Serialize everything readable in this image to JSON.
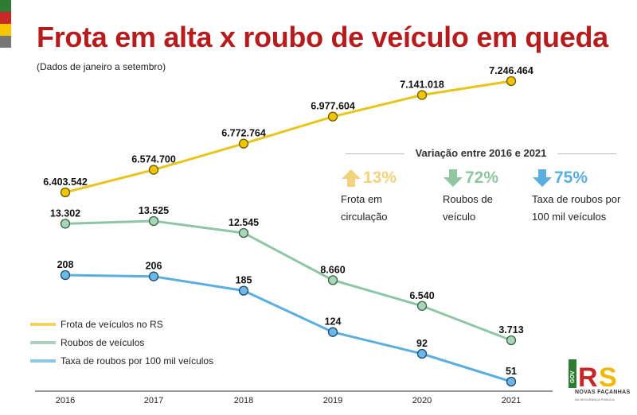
{
  "header": {
    "title": "Frota em alta x roubo de veículo em queda",
    "subtitle": "(Dados de janeiro a setembro)"
  },
  "variation": {
    "title": "Variação entre 2016 e 2021",
    "items": [
      {
        "pct": "13%",
        "desc1": "Frota em",
        "desc2": "circulação",
        "direction": "up",
        "color": "#f2d27c",
        "icon": "arrow-up-icon"
      },
      {
        "pct": "72%",
        "desc1": "Roubos de",
        "desc2": "veículo",
        "direction": "down",
        "color": "#8fc6a0",
        "icon": "arrow-down-icon"
      },
      {
        "pct": "75%",
        "desc1": "Taxa de roubos por",
        "desc2": "100 mil veículos",
        "direction": "down",
        "color": "#5aaee0",
        "icon": "arrow-down-icon"
      }
    ]
  },
  "legend": [
    {
      "label": "Frota de veículos no RS",
      "color": "#f3d45a"
    },
    {
      "label": "Roubos de veículos",
      "color": "#a7d3b8"
    },
    {
      "label": "Taxa de roubos por 100 mil veículos",
      "color": "#8fc9e8"
    }
  ],
  "logo": {
    "text": "NOVAS FAÇANHAS",
    "sub": "NA SEGURANÇA PÚBLICA",
    "vertical": "GOV",
    "letters": "RS"
  },
  "chart_data": {
    "type": "line",
    "categories": [
      "2016",
      "2017",
      "2018",
      "2019",
      "2020",
      "2021"
    ],
    "series": [
      {
        "name": "Frota de veículos no RS",
        "values": [
          6403542,
          6574700,
          6772764,
          6977604,
          7141018,
          7246464
        ],
        "labels": [
          "6.403.542",
          "6.574.700",
          "6.772.764",
          "6.977.604",
          "7.141.018",
          "7.246.464"
        ],
        "line_color": "#e8c51c",
        "marker_color": "#f1c500",
        "marker_edge": "#6b5a00"
      },
      {
        "name": "Roubos de veículos",
        "values": [
          13302,
          13525,
          12545,
          8660,
          6540,
          3713
        ],
        "labels": [
          "13.302",
          "13.525",
          "12.545",
          "8.660",
          "6.540",
          "3.713"
        ],
        "line_color": "#8ec6a4",
        "marker_color": "#a8d6b8",
        "marker_edge": "#3b5f48"
      },
      {
        "name": "Taxa de roubos por 100 mil veículos",
        "values": [
          208,
          206,
          185,
          124,
          92,
          51
        ],
        "labels": [
          "208",
          "206",
          "185",
          "124",
          "92",
          "51"
        ],
        "line_color": "#5aaee0",
        "marker_color": "#6db8e6",
        "marker_edge": "#1d4a66"
      }
    ]
  }
}
